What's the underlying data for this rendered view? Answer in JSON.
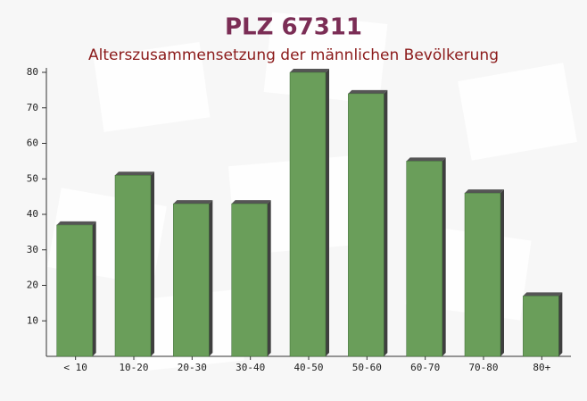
{
  "chart_data": {
    "type": "bar",
    "title": "PLZ 67311",
    "subtitle": "Alterszusammensetzung der männlichen Bevölkerung",
    "categories": [
      "< 10",
      "10-20",
      "20-30",
      "30-40",
      "40-50",
      "50-60",
      "60-70",
      "70-80",
      "80+"
    ],
    "values": [
      37,
      51,
      43,
      43,
      80,
      74,
      55,
      46,
      17
    ],
    "color": "#6a9e5a",
    "ylim": [
      0,
      80
    ],
    "yticks": [
      10,
      20,
      30,
      40,
      50,
      60,
      70,
      80
    ]
  }
}
